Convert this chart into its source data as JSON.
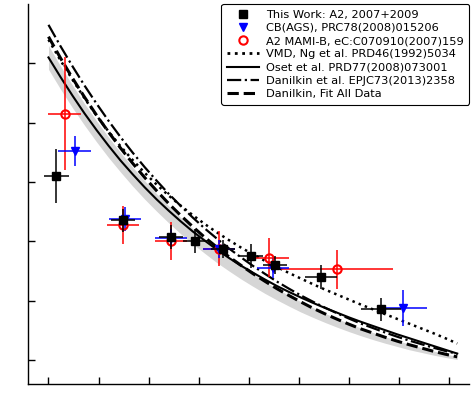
{
  "background_color": "#ffffff",
  "xlim": [
    -0.05,
    1.05
  ],
  "ylim": [
    -0.08,
    1.2
  ],
  "legend_fontsize": 8.2,
  "this_work_x": [
    0.02,
    0.185,
    0.305,
    0.365,
    0.435,
    0.505,
    0.565,
    0.68,
    0.83
  ],
  "this_work_y": [
    0.62,
    0.47,
    0.415,
    0.4,
    0.375,
    0.35,
    0.32,
    0.28,
    0.17
  ],
  "this_work_xerr": [
    0.03,
    0.03,
    0.03,
    0.03,
    0.03,
    0.03,
    0.03,
    0.04,
    0.05
  ],
  "this_work_yerr": [
    0.09,
    0.04,
    0.04,
    0.04,
    0.03,
    0.04,
    0.03,
    0.04,
    0.04
  ],
  "cb_x": [
    0.065,
    0.19,
    0.305,
    0.425,
    0.56,
    0.885
  ],
  "cb_y": [
    0.705,
    0.475,
    0.41,
    0.375,
    0.31,
    0.175
  ],
  "cb_xerr": [
    0.04,
    0.04,
    0.04,
    0.04,
    0.04,
    0.06
  ],
  "cb_yerr": [
    0.05,
    0.04,
    0.03,
    0.03,
    0.035,
    0.06
  ],
  "a2mami_x": [
    0.04,
    0.185,
    0.305,
    0.425,
    0.55,
    0.72
  ],
  "a2mami_y": [
    0.83,
    0.455,
    0.4,
    0.375,
    0.345,
    0.305
  ],
  "a2mami_xerr": [
    0.04,
    0.04,
    0.04,
    0.04,
    0.05,
    0.14
  ],
  "a2mami_yerr": [
    0.19,
    0.065,
    0.065,
    0.06,
    0.065,
    0.065
  ],
  "curve_x": [
    0.0,
    0.03,
    0.06,
    0.09,
    0.12,
    0.15,
    0.18,
    0.21,
    0.24,
    0.27,
    0.3,
    0.33,
    0.36,
    0.39,
    0.42,
    0.45,
    0.48,
    0.51,
    0.54,
    0.57,
    0.6,
    0.63,
    0.66,
    0.69,
    0.72,
    0.75,
    0.78,
    0.81,
    0.84,
    0.87,
    0.9,
    0.93,
    0.96,
    0.99,
    1.02
  ],
  "vmd_y": [
    1.08,
    1.01,
    0.945,
    0.882,
    0.824,
    0.77,
    0.72,
    0.674,
    0.631,
    0.591,
    0.554,
    0.52,
    0.488,
    0.458,
    0.43,
    0.404,
    0.379,
    0.356,
    0.334,
    0.313,
    0.293,
    0.274,
    0.255,
    0.237,
    0.22,
    0.203,
    0.186,
    0.17,
    0.154,
    0.138,
    0.122,
    0.106,
    0.09,
    0.073,
    0.055
  ],
  "oset_y": [
    1.02,
    0.954,
    0.891,
    0.831,
    0.775,
    0.722,
    0.672,
    0.626,
    0.582,
    0.541,
    0.503,
    0.467,
    0.433,
    0.402,
    0.372,
    0.344,
    0.318,
    0.294,
    0.271,
    0.249,
    0.229,
    0.21,
    0.192,
    0.175,
    0.159,
    0.143,
    0.128,
    0.114,
    0.1,
    0.086,
    0.073,
    0.06,
    0.047,
    0.034,
    0.021
  ],
  "danil_y": [
    1.13,
    1.058,
    0.99,
    0.925,
    0.864,
    0.806,
    0.751,
    0.699,
    0.65,
    0.604,
    0.56,
    0.519,
    0.48,
    0.443,
    0.409,
    0.376,
    0.346,
    0.317,
    0.29,
    0.264,
    0.24,
    0.217,
    0.196,
    0.176,
    0.157,
    0.139,
    0.122,
    0.107,
    0.092,
    0.078,
    0.065,
    0.053,
    0.041,
    0.03,
    0.02
  ],
  "danil_fit_y": [
    1.09,
    1.018,
    0.95,
    0.886,
    0.825,
    0.768,
    0.714,
    0.663,
    0.615,
    0.57,
    0.527,
    0.487,
    0.449,
    0.413,
    0.38,
    0.348,
    0.319,
    0.291,
    0.265,
    0.24,
    0.217,
    0.195,
    0.174,
    0.155,
    0.137,
    0.12,
    0.104,
    0.09,
    0.076,
    0.063,
    0.051,
    0.04,
    0.029,
    0.019,
    0.01
  ],
  "band_upper": [
    1.06,
    0.991,
    0.926,
    0.864,
    0.806,
    0.751,
    0.699,
    0.65,
    0.604,
    0.56,
    0.519,
    0.48,
    0.443,
    0.409,
    0.376,
    0.346,
    0.317,
    0.29,
    0.264,
    0.24,
    0.217,
    0.196,
    0.176,
    0.157,
    0.139,
    0.122,
    0.107,
    0.092,
    0.078,
    0.065,
    0.053,
    0.041,
    0.03,
    0.02,
    0.011
  ],
  "band_lower": [
    0.98,
    0.913,
    0.85,
    0.791,
    0.735,
    0.682,
    0.633,
    0.586,
    0.542,
    0.501,
    0.462,
    0.425,
    0.391,
    0.359,
    0.328,
    0.3,
    0.273,
    0.248,
    0.224,
    0.202,
    0.181,
    0.161,
    0.143,
    0.126,
    0.11,
    0.095,
    0.081,
    0.068,
    0.056,
    0.045,
    0.034,
    0.025,
    0.016,
    0.008,
    0.001
  ]
}
